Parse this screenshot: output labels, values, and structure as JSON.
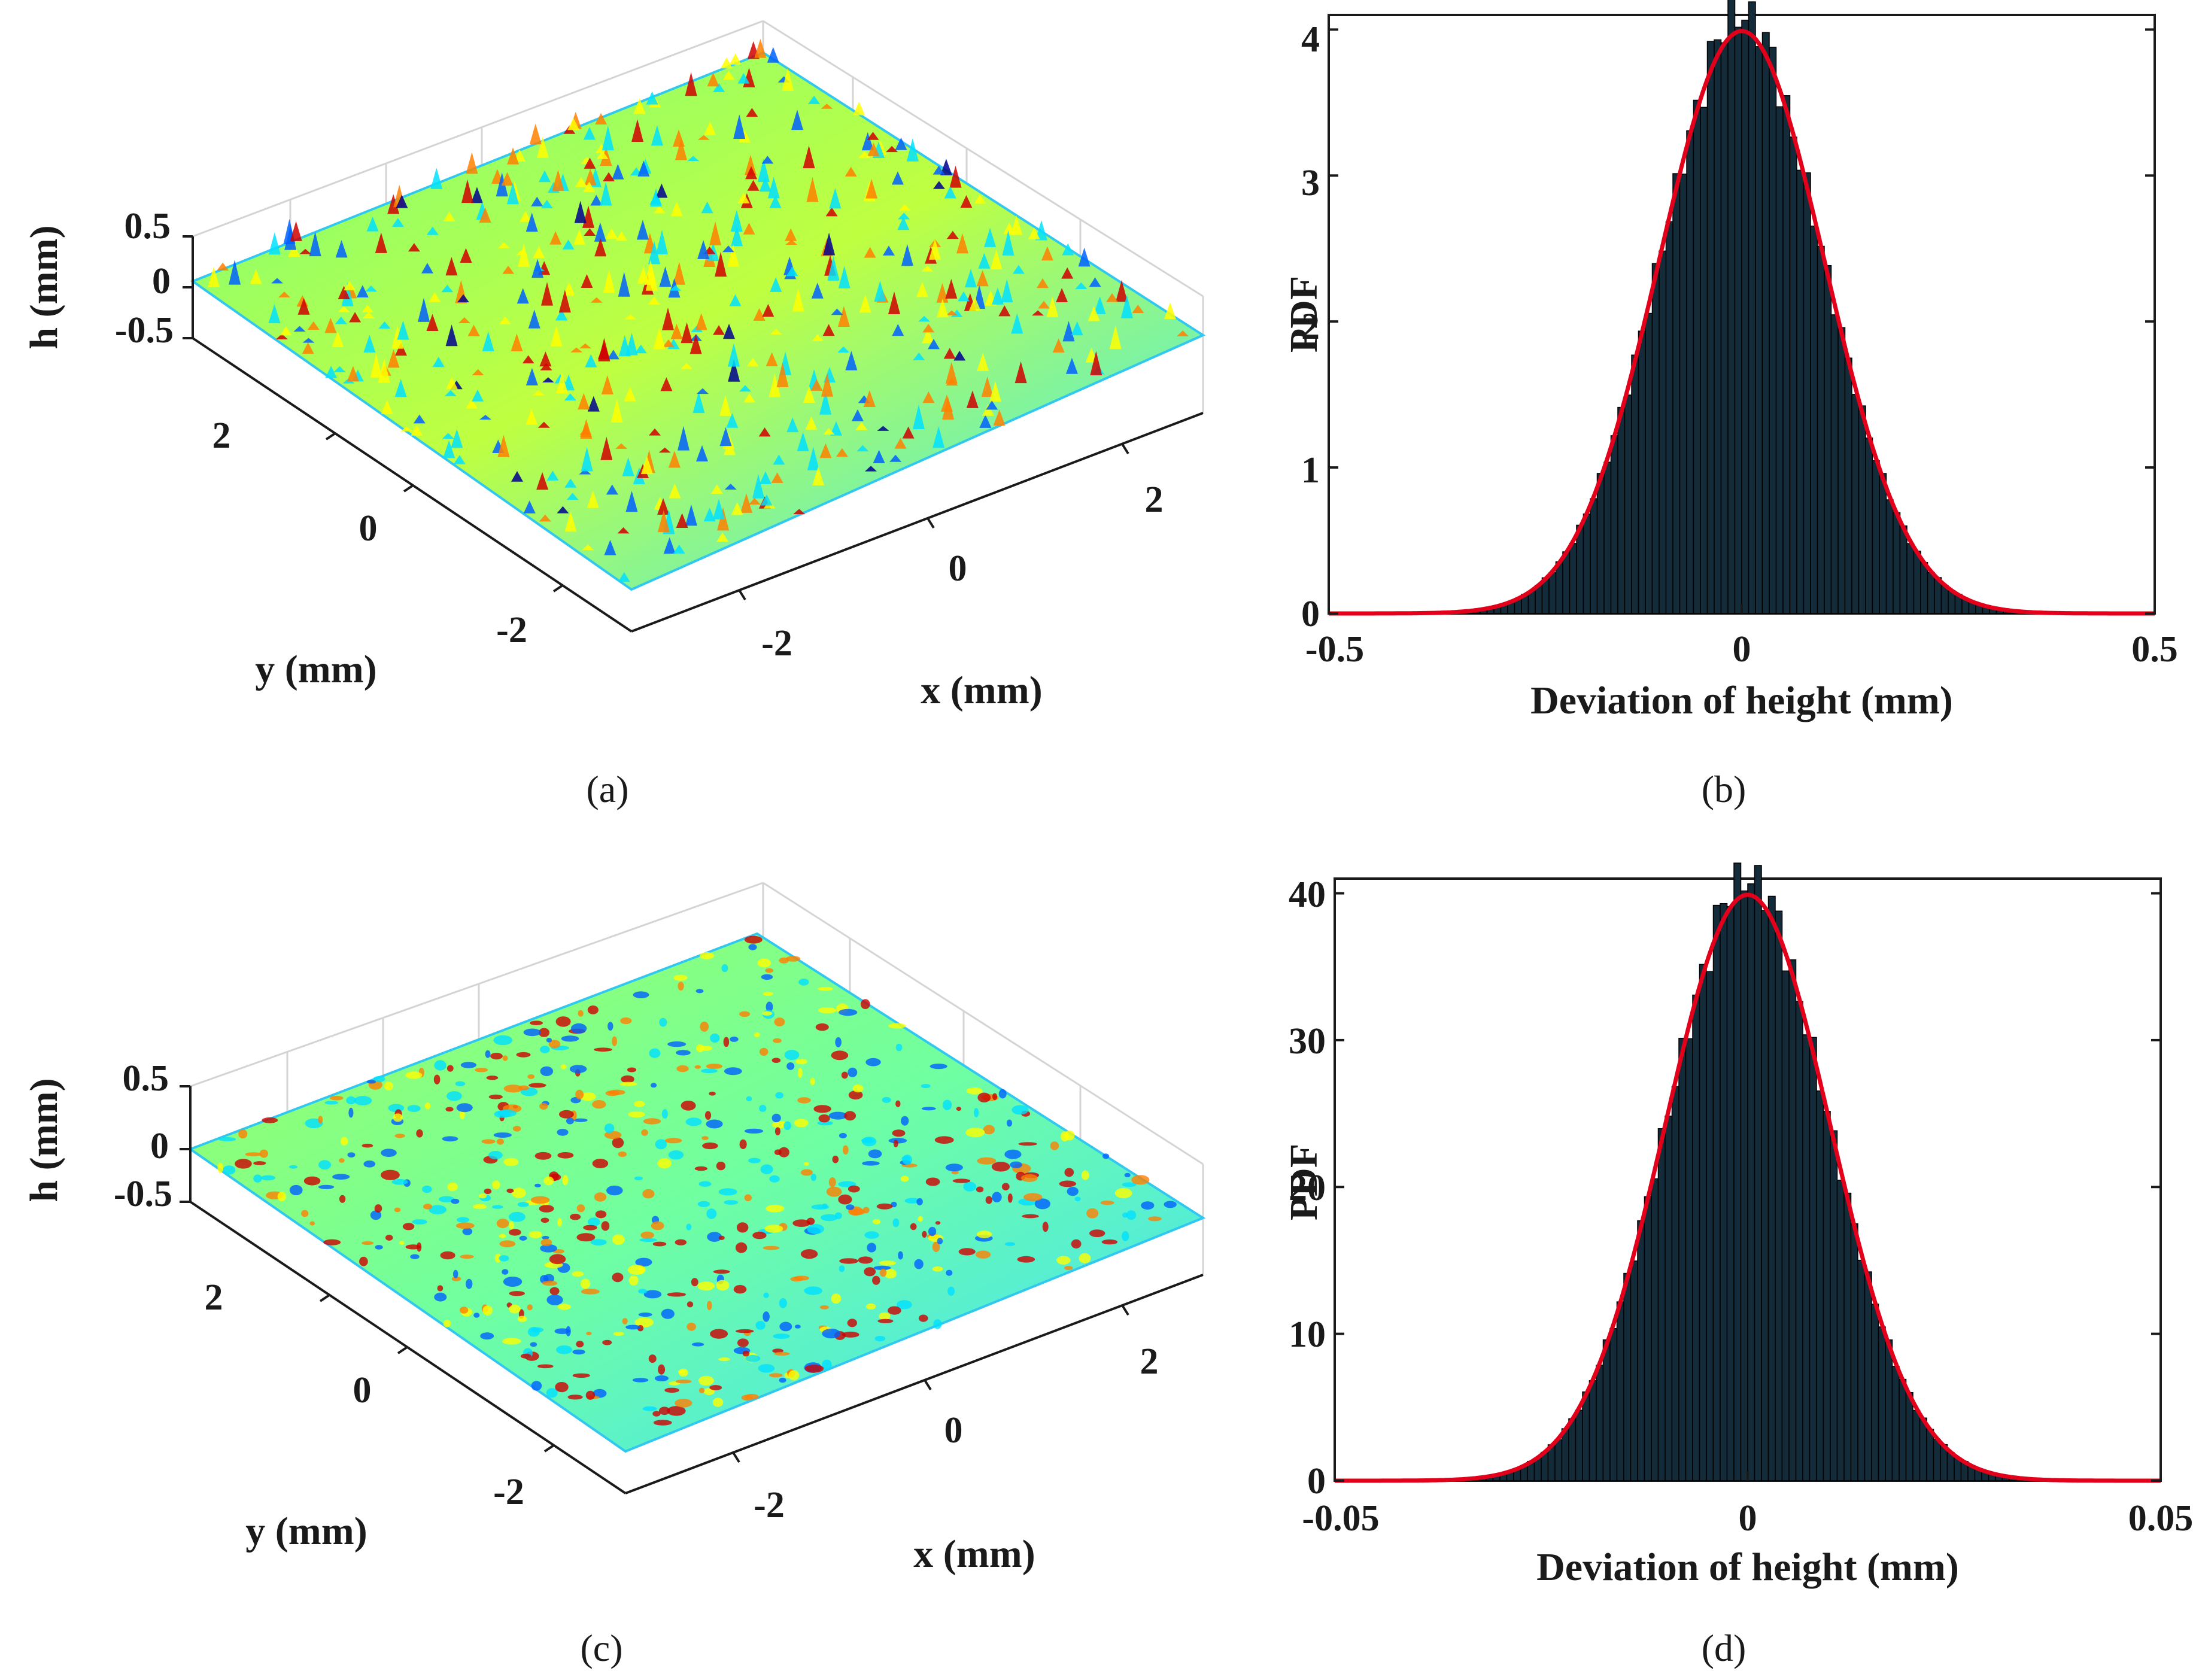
{
  "colors": {
    "fit_line": "#e3001b",
    "histogram_fill": "#142b3a",
    "histogram_edge": "#000000",
    "axis": "#1a1a1a",
    "box_grid": "#d4d4d4",
    "surface_colormap": [
      "#00008f",
      "#0060ff",
      "#00e0ff",
      "#80ff80",
      "#ffff00",
      "#ff8000",
      "#d00000"
    ]
  },
  "chart_data": [
    {
      "panel": "(a)",
      "type": "surface3d",
      "zlabel": "h (mm)",
      "xlabel": "x (mm)",
      "ylabel": "y (mm)",
      "zticks": [
        "0.5",
        "0",
        "-0.5"
      ],
      "xticks": [
        "-2",
        "0",
        "2"
      ],
      "yticks": [
        "-2",
        "0",
        "2"
      ],
      "xlim": [
        -3,
        3
      ],
      "ylim": [
        -3,
        3
      ],
      "zlim": [
        -0.5,
        0.5
      ],
      "roughness": "high"
    },
    {
      "panel": "(b)",
      "type": "histogram_with_fit",
      "xlabel": "Deviation of height (mm)",
      "ylabel": "PDF",
      "xlim": [
        -0.5,
        0.5
      ],
      "ylim": [
        0,
        4.1
      ],
      "xticks": [
        "-0.5",
        "0",
        "0.5"
      ],
      "yticks": [
        "0",
        "1",
        "2",
        "3",
        "4"
      ],
      "fit": {
        "distribution": "normal",
        "mean": 0,
        "sigma": 0.1,
        "peak": 3.99
      },
      "histogram_peak": 4.1
    },
    {
      "panel": "(c)",
      "type": "surface3d",
      "zlabel": "h (mm)",
      "xlabel": "x (mm)",
      "ylabel": "y (mm)",
      "zticks": [
        "0.5",
        "0",
        "-0.5"
      ],
      "xticks": [
        "-2",
        "0",
        "2"
      ],
      "yticks": [
        "-2",
        "0",
        "2"
      ],
      "xlim": [
        -3,
        3
      ],
      "ylim": [
        -3,
        3
      ],
      "zlim": [
        -0.5,
        0.5
      ],
      "roughness": "low"
    },
    {
      "panel": "(d)",
      "type": "histogram_with_fit",
      "xlabel": "Deviation of height (mm)",
      "ylabel": "PDF",
      "xlim": [
        -0.05,
        0.05
      ],
      "ylim": [
        0,
        41
      ],
      "xticks": [
        "-0.05",
        "0",
        "0.05"
      ],
      "yticks": [
        "0",
        "10",
        "20",
        "30",
        "40"
      ],
      "fit": {
        "distribution": "normal",
        "mean": 0,
        "sigma": 0.01,
        "peak": 39.9
      },
      "histogram_peak": 41
    }
  ]
}
